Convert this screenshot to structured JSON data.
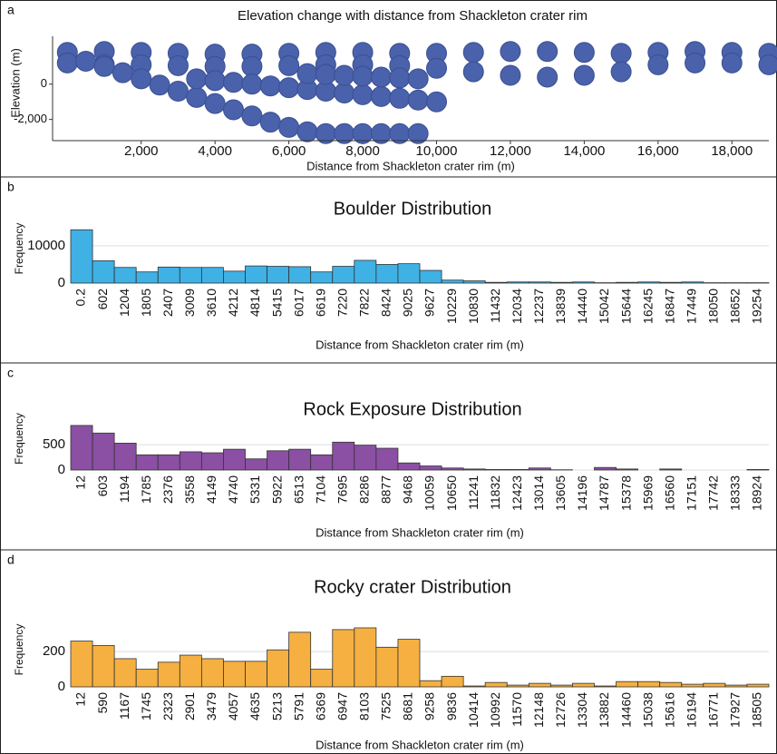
{
  "chart_data": [
    {
      "type": "scatter",
      "panel_label": "a",
      "title": "Elevation change with distance from Shackleton crater rim",
      "xlabel": "Distance from Shackleton crater rim (m)",
      "ylabel": "Elevation (m)",
      "color": "#4a62ab",
      "x": [
        0,
        1000,
        2000,
        3000,
        4000,
        5000,
        6000,
        7000,
        8000,
        9000,
        10000,
        11000,
        12000,
        13000,
        14000,
        15000,
        16000,
        17000,
        18000,
        19000,
        0,
        1000,
        2000,
        3000,
        4000,
        5000,
        6000,
        7000,
        8000,
        9000,
        10000,
        11000,
        12000,
        13000,
        14000,
        15000,
        16000,
        17000,
        18000,
        19000,
        500,
        1000,
        1500,
        2000,
        2500,
        3000,
        3500,
        4000,
        4500,
        5000,
        5500,
        6000,
        6500,
        7000,
        7500,
        8000,
        8500,
        9000,
        9500,
        3500,
        4000,
        4500,
        5000,
        5500,
        6000,
        6500,
        7000,
        7500,
        8000,
        8500,
        9000,
        9500,
        10000,
        6500,
        7000,
        7500,
        8000,
        8500,
        9000,
        9500
      ],
      "values": [
        1800,
        1850,
        1800,
        1750,
        1700,
        1700,
        1750,
        1800,
        1800,
        1750,
        1750,
        1800,
        1850,
        1850,
        1800,
        1750,
        1800,
        1850,
        1800,
        1750,
        1200,
        1100,
        1100,
        1050,
        1000,
        1000,
        1050,
        1100,
        1100,
        1050,
        900,
        700,
        500,
        400,
        500,
        700,
        1100,
        1200,
        1200,
        1100,
        1300,
        1000,
        650,
        300,
        -50,
        -400,
        -750,
        -1100,
        -1450,
        -1800,
        -2150,
        -2450,
        -2700,
        -2800,
        -2800,
        -2800,
        -2800,
        -2800,
        -2800,
        300,
        200,
        100,
        0,
        -100,
        -200,
        -300,
        -400,
        -500,
        -600,
        -700,
        -800,
        -900,
        -1000,
        600,
        550,
        500,
        450,
        400,
        350,
        300
      ],
      "xlim": [
        -400,
        19000
      ],
      "ylim": [
        -3200,
        2300
      ],
      "xticks": [
        {
          "value": 2000,
          "label": "2,000"
        },
        {
          "value": 4000,
          "label": "4,000"
        },
        {
          "value": 6000,
          "label": "6,000"
        },
        {
          "value": 8000,
          "label": "8,000"
        },
        {
          "value": 10000,
          "label": "10,000"
        },
        {
          "value": 12000,
          "label": "12,000"
        },
        {
          "value": 14000,
          "label": "14,000"
        },
        {
          "value": 16000,
          "label": "16,000"
        },
        {
          "value": 18000,
          "label": "18,000"
        }
      ],
      "yticks": [
        0,
        {
          "value": -2000,
          "label": "-2,000"
        }
      ]
    },
    {
      "type": "bar",
      "panel_label": "b",
      "title": "Boulder Distribution",
      "xlabel": "Distance from Shackleton crater rim (m)",
      "ylabel": "Frequency",
      "color": "#3fb1e5",
      "grid": true,
      "categories": [
        "0.2",
        "602",
        "1204",
        "1805",
        "2407",
        "3009",
        "3610",
        "4212",
        "4814",
        "5415",
        "6017",
        "6619",
        "7220",
        "7822",
        "8424",
        "9025",
        "9627",
        "10229",
        "10830",
        "11432",
        "12034",
        "12237",
        "13839",
        "14440",
        "15042",
        "15644",
        "16245",
        "16847",
        "17449",
        "18050",
        "18652",
        "19254"
      ],
      "values": [
        14300,
        6000,
        4200,
        3000,
        4300,
        4200,
        4200,
        3200,
        4600,
        4500,
        4400,
        3000,
        4500,
        6100,
        5000,
        5200,
        3400,
        800,
        600,
        200,
        300,
        300,
        200,
        300,
        100,
        200,
        300,
        200,
        300,
        100,
        100,
        100
      ],
      "ylim": [
        0,
        14600
      ],
      "yticks": [
        0,
        10000
      ]
    },
    {
      "type": "bar",
      "panel_label": "c",
      "title": "Rock Exposure Distribution",
      "xlabel": "Distance from Shackleton crater rim (m)",
      "ylabel": "Frequency",
      "color": "#8b4fa3",
      "grid": true,
      "categories": [
        "12",
        "603",
        "1194",
        "1785",
        "2376",
        "3558",
        "4149",
        "4740",
        "5331",
        "5922",
        "6513",
        "7104",
        "7695",
        "8286",
        "8877",
        "9468",
        "10059",
        "10650",
        "11241",
        "11832",
        "12423",
        "13014",
        "13605",
        "14196",
        "14787",
        "15378",
        "15969",
        "16560",
        "17151",
        "17742",
        "18333",
        "18924"
      ],
      "values": [
        880,
        730,
        530,
        300,
        300,
        360,
        340,
        410,
        220,
        380,
        410,
        300,
        550,
        490,
        430,
        140,
        80,
        40,
        20,
        10,
        10,
        40,
        5,
        0,
        50,
        20,
        0,
        20,
        0,
        0,
        0,
        10
      ],
      "ylim": [
        0,
        950
      ],
      "yticks": [
        0,
        500
      ]
    },
    {
      "type": "bar",
      "panel_label": "d",
      "title": "Rocky crater Distribution",
      "xlabel": "Distance from Shackleton crater rim (m)",
      "ylabel": "Frequency",
      "color": "#f5b041",
      "grid": true,
      "categories": [
        "12",
        "590",
        "1167",
        "1745",
        "2323",
        "2901",
        "3479",
        "4057",
        "4635",
        "5213",
        "5791",
        "6369",
        "6947",
        "8103",
        "7525",
        "8681",
        "9258",
        "9836",
        "10414",
        "10992",
        "11570",
        "12148",
        "12726",
        "13304",
        "13882",
        "14460",
        "15038",
        "15616",
        "16194",
        "16771",
        "17927",
        "18505"
      ],
      "values": [
        260,
        235,
        160,
        100,
        140,
        180,
        160,
        145,
        145,
        210,
        310,
        100,
        325,
        335,
        225,
        270,
        35,
        60,
        5,
        25,
        10,
        20,
        10,
        20,
        5,
        30,
        30,
        25,
        15,
        20,
        10,
        15
      ],
      "ylim": [
        0,
        340
      ],
      "yticks": [
        0,
        200
      ]
    }
  ]
}
